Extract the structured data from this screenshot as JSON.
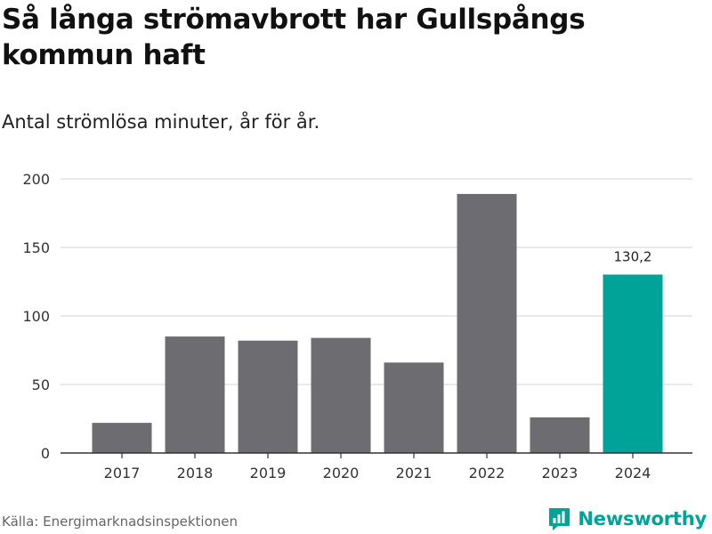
{
  "header": {
    "title": "Så långa strömavbrott har Gullspångs kommun haft",
    "subtitle": "Antal strömlösa minuter, år för år."
  },
  "footer": {
    "source": "Källa: Energimarknadsinspektionen",
    "brand": "Newsworthy",
    "brand_icon": "bar-chart-logo-icon"
  },
  "colors": {
    "bar": "#6d6c71",
    "highlight": "#00a398",
    "grid": "#dcdcdc",
    "axis": "#333333"
  },
  "chart_data": {
    "type": "bar",
    "title": "Så långa strömavbrott har Gullspångs kommun haft",
    "subtitle": "Antal strömlösa minuter, år för år.",
    "xlabel": "",
    "ylabel": "",
    "categories": [
      "2017",
      "2018",
      "2019",
      "2020",
      "2021",
      "2022",
      "2023",
      "2024"
    ],
    "values": [
      22,
      85,
      82,
      84,
      66,
      189,
      26,
      130.2
    ],
    "highlight_index": 7,
    "data_labels": [
      {
        "index": 7,
        "text": "130,2"
      }
    ],
    "ylim": [
      0,
      200
    ],
    "yticks": [
      0,
      50,
      100,
      150,
      200
    ],
    "grid": true,
    "legend": "none"
  }
}
